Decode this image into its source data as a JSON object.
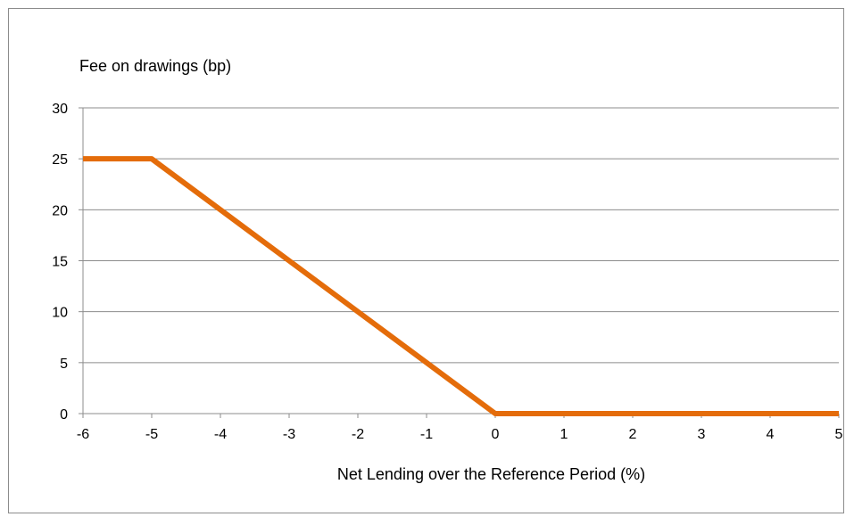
{
  "chart_data": {
    "type": "line",
    "title": "",
    "ylabel": "Fee on drawings (bp)",
    "xlabel": "Net Lending over the Reference Period (%)",
    "x": [
      -6,
      -5,
      0,
      5
    ],
    "series": [
      {
        "values": [
          25,
          25,
          0,
          0
        ],
        "color": "#E46C0A"
      }
    ],
    "xlim": [
      -6,
      5
    ],
    "ylim": [
      0,
      30
    ],
    "x_ticks": [
      "-6",
      "-5",
      "-4",
      "-3",
      "-2",
      "-1",
      "0",
      "1",
      "2",
      "3",
      "4",
      "5"
    ],
    "y_ticks": [
      "0",
      "5",
      "10",
      "15",
      "20",
      "25",
      "30"
    ],
    "grid": "horizontal",
    "legend": "none"
  },
  "colors": {
    "line": "#E46C0A",
    "grid": "#8c8c8c",
    "frame": "#8c8c8c"
  }
}
